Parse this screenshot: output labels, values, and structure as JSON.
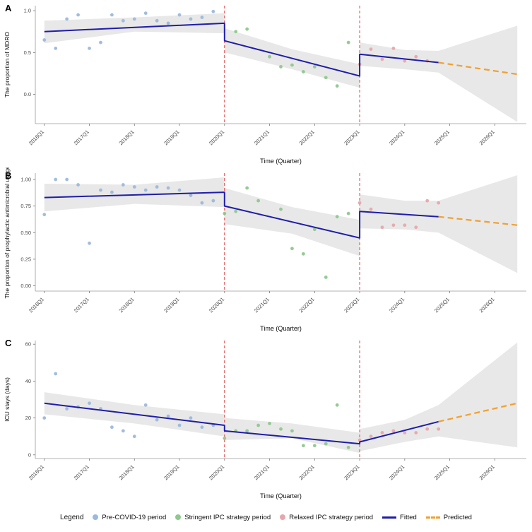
{
  "legend": {
    "title": "Legend",
    "items": [
      {
        "label": "Pre-COVID-19 period",
        "kind": "point",
        "color": "#9bb9dc"
      },
      {
        "label": "Stringent IPC strategy period",
        "kind": "point",
        "color": "#8fc88d"
      },
      {
        "label": "Relaxed IPC strategy period",
        "kind": "point",
        "color": "#e8a6ab"
      },
      {
        "label": "Fitted",
        "kind": "line",
        "color": "#1f1da7"
      },
      {
        "label": "Predicted",
        "kind": "dashed",
        "color": "#f0a030"
      }
    ]
  },
  "colors": {
    "pre_covid": "#9bb9dc",
    "stringent": "#8fc88d",
    "relaxed": "#e8a6ab",
    "fitted": "#1f1da7",
    "predicted": "#f0a030",
    "intervention_line": "#e23c3c",
    "band": "#d6d6d6",
    "axis_text": "#4d4d4d"
  },
  "chart_data": [
    {
      "type": "scatter",
      "panel_label": "A",
      "xlabel": "Time (Quarter)",
      "ylabel": "The proportion of MDRO",
      "xlim": [
        -0.8,
        42.8
      ],
      "ylim": [
        -0.35,
        1.06
      ],
      "x_ticks": {
        "positions": [
          0,
          4,
          8,
          12,
          16,
          20,
          24,
          28,
          32,
          36,
          40
        ],
        "labels": [
          "2016Q1",
          "2017Q1",
          "2018Q1",
          "2019Q1",
          "2020Q1",
          "2021Q1",
          "2022Q1",
          "2023Q1",
          "2024Q1",
          "2025Q1",
          "2026Q1"
        ]
      },
      "y_ticks": {
        "positions": [
          0,
          0.5,
          1
        ],
        "labels": [
          "0.0",
          "0.5",
          "1.0"
        ]
      },
      "intervention_x": [
        16,
        28
      ],
      "series": [
        {
          "name": "Pre-COVID-19 period",
          "kind": "points",
          "color": "#9bb9dc",
          "data": [
            [
              0,
              0.65
            ],
            [
              1,
              0.55
            ],
            [
              2,
              0.9
            ],
            [
              3,
              0.95
            ],
            [
              4,
              0.55
            ],
            [
              5,
              0.62
            ],
            [
              6,
              0.95
            ],
            [
              7,
              0.88
            ],
            [
              8,
              0.9
            ],
            [
              9,
              0.97
            ],
            [
              10,
              0.88
            ],
            [
              11,
              0.85
            ],
            [
              12,
              0.95
            ],
            [
              13,
              0.9
            ],
            [
              14,
              0.92
            ],
            [
              15,
              0.99
            ]
          ]
        },
        {
          "name": "Stringent IPC strategy period",
          "kind": "points",
          "color": "#8fc88d",
          "data": [
            [
              17,
              0.75
            ],
            [
              18,
              0.78
            ],
            [
              20,
              0.45
            ],
            [
              21,
              0.33
            ],
            [
              22,
              0.35
            ],
            [
              23,
              0.27
            ],
            [
              24,
              0.33
            ],
            [
              25,
              0.2
            ],
            [
              26,
              0.1
            ],
            [
              27,
              0.62
            ]
          ]
        },
        {
          "name": "Relaxed IPC strategy period",
          "kind": "points",
          "color": "#e8a6ab",
          "data": [
            [
              28,
              0.36
            ],
            [
              29,
              0.54
            ],
            [
              30,
              0.42
            ],
            [
              31,
              0.55
            ],
            [
              32,
              0.4
            ],
            [
              33,
              0.45
            ],
            [
              34,
              0.4
            ]
          ]
        },
        {
          "name": "Fitted",
          "kind": "line",
          "color": "#1f1da7",
          "data": [
            [
              0,
              0.75
            ],
            [
              16,
              0.85
            ],
            [
              16,
              0.64
            ],
            [
              28,
              0.22
            ],
            [
              28,
              0.48
            ],
            [
              35,
              0.38
            ]
          ]
        },
        {
          "name": "Predicted",
          "kind": "dashed",
          "color": "#f0a030",
          "data": [
            [
              35,
              0.38
            ],
            [
              42,
              0.24
            ]
          ]
        }
      ],
      "bands": [
        {
          "upper": [
            [
              0,
              0.88
            ],
            [
              8,
              0.92
            ],
            [
              16,
              0.97
            ]
          ],
          "lower": [
            [
              0,
              0.61
            ],
            [
              8,
              0.75
            ],
            [
              16,
              0.73
            ]
          ]
        },
        {
          "upper": [
            [
              16,
              0.79
            ],
            [
              22,
              0.54
            ],
            [
              28,
              0.36
            ]
          ],
          "lower": [
            [
              16,
              0.5
            ],
            [
              22,
              0.3
            ],
            [
              28,
              0.08
            ]
          ]
        },
        {
          "upper": [
            [
              28,
              0.62
            ],
            [
              32,
              0.53
            ],
            [
              35,
              0.52
            ],
            [
              42,
              0.82
            ]
          ],
          "lower": [
            [
              28,
              0.34
            ],
            [
              32,
              0.3
            ],
            [
              35,
              0.26
            ],
            [
              42,
              -0.33
            ]
          ]
        }
      ]
    },
    {
      "type": "scatter",
      "panel_label": "B",
      "xlabel": "Time (Quarter)",
      "ylabel": "The proportion of prophylactic antimicrobial usage",
      "xlim": [
        -0.8,
        42.8
      ],
      "ylim": [
        -0.05,
        1.06
      ],
      "x_ticks": {
        "positions": [
          0,
          4,
          8,
          12,
          16,
          20,
          24,
          28,
          32,
          36,
          40
        ],
        "labels": [
          "2016Q1",
          "2017Q1",
          "2018Q1",
          "2019Q1",
          "2020Q1",
          "2021Q1",
          "2022Q1",
          "2023Q1",
          "2024Q1",
          "2025Q1",
          "2026Q1"
        ]
      },
      "y_ticks": {
        "positions": [
          0,
          0.25,
          0.5,
          0.75,
          1
        ],
        "labels": [
          "0.00",
          "0.25",
          "0.50",
          "0.75",
          "1.00"
        ]
      },
      "intervention_x": [
        16,
        28
      ],
      "series": [
        {
          "name": "Pre-COVID-19 period",
          "kind": "points",
          "color": "#9bb9dc",
          "data": [
            [
              0,
              0.67
            ],
            [
              1,
              1.0
            ],
            [
              2,
              1.0
            ],
            [
              3,
              0.95
            ],
            [
              4,
              0.4
            ],
            [
              5,
              0.9
            ],
            [
              6,
              0.88
            ],
            [
              7,
              0.95
            ],
            [
              8,
              0.93
            ],
            [
              9,
              0.9
            ],
            [
              10,
              0.93
            ],
            [
              11,
              0.92
            ],
            [
              12,
              0.9
            ],
            [
              13,
              0.85
            ],
            [
              14,
              0.78
            ],
            [
              15,
              0.8
            ]
          ]
        },
        {
          "name": "Stringent IPC strategy period",
          "kind": "points",
          "color": "#8fc88d",
          "data": [
            [
              16,
              0.68
            ],
            [
              17,
              0.7
            ],
            [
              18,
              0.92
            ],
            [
              19,
              0.8
            ],
            [
              21,
              0.72
            ],
            [
              22,
              0.35
            ],
            [
              23,
              0.3
            ],
            [
              24,
              0.53
            ],
            [
              25,
              0.08
            ],
            [
              26,
              0.65
            ],
            [
              27,
              0.68
            ]
          ]
        },
        {
          "name": "Relaxed IPC strategy period",
          "kind": "points",
          "color": "#e8a6ab",
          "data": [
            [
              28,
              0.78
            ],
            [
              29,
              0.72
            ],
            [
              30,
              0.55
            ],
            [
              31,
              0.57
            ],
            [
              32,
              0.57
            ],
            [
              33,
              0.55
            ],
            [
              34,
              0.8
            ],
            [
              35,
              0.78
            ]
          ]
        },
        {
          "name": "Fitted",
          "kind": "line",
          "color": "#1f1da7",
          "data": [
            [
              0,
              0.83
            ],
            [
              16,
              0.88
            ],
            [
              16,
              0.75
            ],
            [
              28,
              0.45
            ],
            [
              28,
              0.7
            ],
            [
              35,
              0.65
            ]
          ]
        },
        {
          "name": "Predicted",
          "kind": "dashed",
          "color": "#f0a030",
          "data": [
            [
              35,
              0.65
            ],
            [
              42,
              0.57
            ]
          ]
        }
      ],
      "bands": [
        {
          "upper": [
            [
              0,
              0.96
            ],
            [
              8,
              0.95
            ],
            [
              16,
              1.02
            ]
          ],
          "lower": [
            [
              0,
              0.7
            ],
            [
              8,
              0.77
            ],
            [
              16,
              0.74
            ]
          ]
        },
        {
          "upper": [
            [
              16,
              0.92
            ],
            [
              22,
              0.74
            ],
            [
              28,
              0.62
            ]
          ],
          "lower": [
            [
              16,
              0.58
            ],
            [
              22,
              0.49
            ],
            [
              28,
              0.28
            ]
          ]
        },
        {
          "upper": [
            [
              28,
              0.86
            ],
            [
              32,
              0.8
            ],
            [
              35,
              0.8
            ],
            [
              42,
              1.04
            ]
          ],
          "lower": [
            [
              28,
              0.54
            ],
            [
              32,
              0.53
            ],
            [
              35,
              0.5
            ],
            [
              42,
              0.12
            ]
          ]
        }
      ]
    },
    {
      "type": "scatter",
      "panel_label": "C",
      "xlabel": "Time (Quarter)",
      "ylabel": "ICU stays (days)",
      "xlim": [
        -0.8,
        42.8
      ],
      "ylim": [
        -2,
        62
      ],
      "x_ticks": {
        "positions": [
          0,
          4,
          8,
          12,
          16,
          20,
          24,
          28,
          32,
          36,
          40
        ],
        "labels": [
          "2016Q1",
          "2017Q1",
          "2018Q1",
          "2019Q1",
          "2020Q1",
          "2021Q1",
          "2022Q1",
          "2023Q1",
          "2024Q1",
          "2025Q1",
          "2026Q1"
        ]
      },
      "y_ticks": {
        "positions": [
          0,
          20,
          40,
          60
        ],
        "labels": [
          "0",
          "20",
          "40",
          "60"
        ]
      },
      "intervention_x": [
        16,
        28
      ],
      "series": [
        {
          "name": "Pre-COVID-19 period",
          "kind": "points",
          "color": "#9bb9dc",
          "data": [
            [
              0,
              20
            ],
            [
              1,
              44
            ],
            [
              2,
              25
            ],
            [
              3,
              26
            ],
            [
              4,
              28
            ],
            [
              5,
              25
            ],
            [
              6,
              15
            ],
            [
              7,
              13
            ],
            [
              8,
              10
            ],
            [
              9,
              27
            ],
            [
              10,
              19
            ],
            [
              11,
              21
            ],
            [
              12,
              16
            ],
            [
              13,
              20
            ],
            [
              14,
              15
            ],
            [
              15,
              16
            ]
          ]
        },
        {
          "name": "Stringent IPC strategy period",
          "kind": "points",
          "color": "#8fc88d",
          "data": [
            [
              16,
              9
            ],
            [
              17,
              13
            ],
            [
              18,
              13
            ],
            [
              19,
              16
            ],
            [
              20,
              17
            ],
            [
              21,
              14
            ],
            [
              22,
              13
            ],
            [
              23,
              5
            ],
            [
              24,
              5
            ],
            [
              25,
              6
            ],
            [
              26,
              27
            ],
            [
              27,
              4
            ]
          ]
        },
        {
          "name": "Relaxed IPC strategy period",
          "kind": "points",
          "color": "#e8a6ab",
          "data": [
            [
              28,
              8
            ],
            [
              29,
              10
            ],
            [
              30,
              12
            ],
            [
              31,
              13
            ],
            [
              32,
              12
            ],
            [
              33,
              12
            ],
            [
              34,
              14
            ],
            [
              35,
              14
            ]
          ]
        },
        {
          "name": "Fitted",
          "kind": "line",
          "color": "#1f1da7",
          "data": [
            [
              0,
              28
            ],
            [
              16,
              16
            ],
            [
              16,
              13
            ],
            [
              28,
              6
            ],
            [
              28,
              7
            ],
            [
              35,
              18
            ]
          ]
        },
        {
          "name": "Predicted",
          "kind": "dashed",
          "color": "#f0a030",
          "data": [
            [
              35,
              18
            ],
            [
              42,
              28
            ]
          ]
        }
      ],
      "bands": [
        {
          "upper": [
            [
              0,
              34
            ],
            [
              8,
              27
            ],
            [
              16,
              22
            ]
          ],
          "lower": [
            [
              0,
              22
            ],
            [
              8,
              17
            ],
            [
              16,
              10
            ]
          ]
        },
        {
          "upper": [
            [
              16,
              20
            ],
            [
              22,
              17
            ],
            [
              28,
              12
            ]
          ],
          "lower": [
            [
              16,
              8
            ],
            [
              22,
              9
            ],
            [
              28,
              1
            ]
          ]
        },
        {
          "upper": [
            [
              28,
              14
            ],
            [
              32,
              19
            ],
            [
              35,
              27
            ],
            [
              42,
              61
            ]
          ],
          "lower": [
            [
              28,
              2
            ],
            [
              32,
              7
            ],
            [
              35,
              10
            ],
            [
              42,
              4
            ]
          ]
        }
      ]
    }
  ]
}
